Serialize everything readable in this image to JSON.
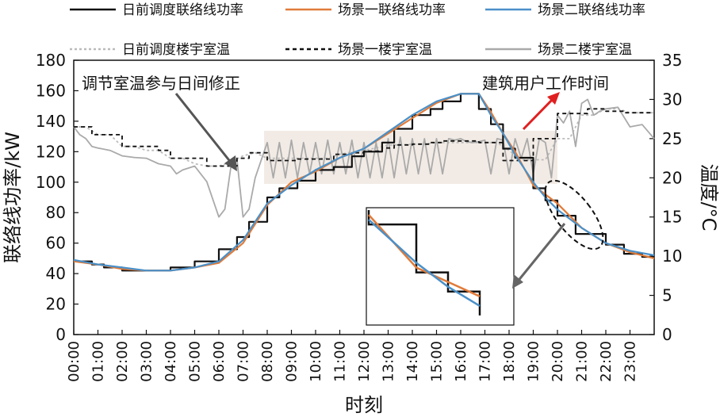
{
  "chart_data": {
    "type": "line",
    "xlabel": "时刻",
    "ylabel_left": "联络线功率/kW",
    "ylabel_right": "温度/°C",
    "ylim_left": [
      0,
      180
    ],
    "ylim_right": [
      0,
      35
    ],
    "yticks_left": [
      "0",
      "20",
      "40",
      "60",
      "80",
      "100",
      "120",
      "140",
      "160",
      "180"
    ],
    "yticks_right": [
      "0",
      "5",
      "10",
      "15",
      "20",
      "25",
      "30",
      "35"
    ],
    "xticks": [
      "00:00",
      "01:00",
      "02:00",
      "03:00",
      "04:00",
      "05:00",
      "06:00",
      "07:00",
      "08:00",
      "09:00",
      "10:00",
      "11:00",
      "12:00",
      "13:00",
      "14:00",
      "15:00",
      "16:00",
      "17:00",
      "18:00",
      "19:00",
      "20:00",
      "21:00",
      "22:00",
      "23:00"
    ],
    "legend": [
      "日前调度联络线功率",
      "场景一联络线功率",
      "场景二联络线功率",
      "日前调度楼宇室温",
      "场景一楼宇室温",
      "场景二楼宇室温"
    ],
    "annotations": {
      "left": "调节室温参与日间修正",
      "right": "建筑用户工作时间"
    },
    "series": [
      {
        "name": "日前调度联络线功率",
        "axis": "left",
        "color": "#111111",
        "x": [
          0,
          0.75,
          0.75,
          1.25,
          1.25,
          2.0,
          2.0,
          3.5,
          3.5,
          4.0,
          4.0,
          5.0,
          5.0,
          6.0,
          6.0,
          6.75,
          6.75,
          7.25,
          7.25,
          8.0,
          8.0,
          8.5,
          8.5,
          9.25,
          9.25,
          10.0,
          10.0,
          10.75,
          10.75,
          11.5,
          11.5,
          12.0,
          12.0,
          12.75,
          12.75,
          13.25,
          13.25,
          14.0,
          14.0,
          14.75,
          14.75,
          15.25,
          15.25,
          16.0,
          16.0,
          16.75,
          16.75,
          17.25,
          17.25,
          17.75,
          17.75,
          18.25,
          18.25,
          19.0,
          19.0,
          19.5,
          19.5,
          20.0,
          20.0,
          20.75,
          20.75,
          21.25,
          21.25,
          22.0,
          22.0,
          22.75,
          22.75,
          23.5,
          23.5,
          24.0
        ],
        "y": [
          48,
          48,
          46,
          46,
          44,
          44,
          42,
          42,
          42,
          42,
          44,
          44,
          48,
          48,
          56,
          56,
          64,
          64,
          74,
          74,
          90,
          90,
          96,
          96,
          101,
          101,
          108,
          108,
          110,
          110,
          117,
          117,
          120,
          120,
          126,
          126,
          135,
          135,
          144,
          144,
          148,
          148,
          153,
          153,
          158,
          158,
          148,
          148,
          138,
          138,
          122,
          122,
          116,
          116,
          96,
          96,
          88,
          88,
          78,
          78,
          66,
          66,
          66,
          66,
          59,
          59,
          53,
          53,
          51,
          51
        ]
      },
      {
        "name": "场景一联络线功率",
        "axis": "left",
        "color": "#e07b39",
        "x": [
          0,
          1,
          2,
          3,
          4,
          5,
          6,
          7,
          8,
          9,
          10,
          11,
          12,
          13,
          14,
          15,
          16,
          16.75,
          17.25,
          17.75,
          18.25,
          19,
          19.5,
          20,
          21,
          22,
          23,
          24
        ],
        "y": [
          48,
          46,
          43,
          42,
          42,
          44,
          47,
          60,
          85,
          100,
          107,
          116,
          122,
          132,
          142,
          152,
          158,
          158,
          146,
          132,
          120,
          98,
          92,
          86,
          70,
          60,
          54,
          50
        ]
      },
      {
        "name": "场景二联络线功率",
        "axis": "left",
        "color": "#4a90c8",
        "x": [
          0,
          1,
          2,
          3,
          4,
          5,
          6,
          7,
          8,
          9,
          10,
          11,
          12,
          13,
          14,
          15,
          16,
          16.75,
          17.25,
          17.75,
          18.25,
          19,
          19.5,
          20,
          21,
          22,
          23,
          24
        ],
        "y": [
          49,
          46,
          44,
          42,
          42,
          44,
          48,
          62,
          86,
          98,
          108,
          116,
          122,
          133,
          144,
          153,
          158,
          158,
          144,
          132,
          118,
          100,
          90,
          82,
          70,
          60,
          55,
          52
        ]
      },
      {
        "name": "日前调度楼宇室温",
        "axis": "right",
        "color": "#bbbbbb",
        "dash": "3,3",
        "x": [
          0,
          0.5,
          1,
          1.5,
          2,
          2.5,
          3,
          3.5,
          4,
          4.5,
          5,
          5.5,
          6,
          6.5,
          7,
          7.5,
          8,
          8.5,
          9,
          9.5,
          10,
          10.5,
          11,
          11.5,
          12,
          12.5,
          13,
          13.5,
          14,
          14.5,
          15,
          15.5,
          16,
          16.5,
          17,
          17.5,
          18,
          18.5,
          19,
          19.5,
          20,
          20.5,
          21,
          21.5,
          22,
          22.5,
          23,
          23.5,
          24
        ],
        "y": [
          26.5,
          26.5,
          25.5,
          25.5,
          24,
          24,
          23.5,
          23.5,
          22.5,
          22.5,
          21.8,
          21.5,
          21.5,
          22,
          22.8,
          23.2,
          22.5,
          22.5,
          22.5,
          22.5,
          22.5,
          22.5,
          23,
          23.3,
          23.5,
          23.8,
          24.2,
          24.2,
          24.3,
          24.3,
          24.5,
          24.5,
          24.5,
          24.5,
          24.5,
          24.5,
          23.5,
          22.3,
          22.3,
          22.3,
          25,
          25,
          28,
          28,
          28.8,
          28.8,
          28.3,
          28.3,
          28.3
        ]
      },
      {
        "name": "场景一楼宇室温",
        "axis": "right",
        "color": "#111111",
        "dash": "5,4",
        "x": [
          0,
          0.75,
          0.75,
          1.5,
          1.5,
          2.0,
          2.0,
          2.75,
          2.75,
          3.5,
          3.5,
          4.0,
          4.0,
          4.75,
          4.75,
          5.5,
          5.5,
          6.0,
          6.0,
          6.75,
          6.75,
          7.25,
          7.25,
          8.0,
          8.0,
          8.5,
          8.5,
          9.25,
          9.25,
          10.0,
          10.0,
          10.75,
          10.75,
          11.5,
          11.5,
          12.0,
          12.0,
          12.75,
          12.75,
          13.25,
          13.25,
          14.0,
          14.0,
          14.75,
          14.75,
          15.25,
          15.25,
          16.0,
          16.0,
          16.75,
          16.75,
          17.25,
          17.25,
          17.75,
          17.75,
          18.25,
          18.25,
          19.0,
          19.0,
          19.5,
          19.5,
          20.0,
          20.0,
          20.75,
          20.75,
          21.25,
          21.25,
          22.0,
          22.0,
          22.75,
          22.75,
          23.5,
          23.5,
          24.0
        ],
        "y": [
          26.5,
          26.5,
          25.5,
          25.5,
          25.5,
          25.5,
          24,
          24,
          24,
          24,
          23.5,
          23.5,
          22.5,
          22.5,
          22.5,
          22.5,
          21.5,
          21.5,
          21.5,
          21.5,
          22.5,
          22.5,
          23.2,
          23.2,
          22.2,
          22.2,
          22.2,
          22.2,
          22.4,
          22.4,
          22.4,
          22.4,
          23,
          23,
          23.2,
          23.2,
          23.4,
          23.4,
          23.8,
          23.8,
          24.2,
          24.2,
          24.3,
          24.3,
          24.5,
          24.5,
          24.7,
          24.7,
          24.7,
          24.7,
          24.5,
          24.5,
          24.5,
          24.5,
          22.2,
          22.2,
          22.2,
          22.2,
          25,
          25,
          25,
          25,
          28.2,
          28.2,
          28.2,
          28.2,
          28.8,
          28.8,
          28.5,
          28.5,
          28.3,
          28.3,
          28.3,
          28.3
        ]
      },
      {
        "name": "场景二楼宇室温",
        "axis": "right",
        "color": "#aaaaaa",
        "x": [
          0,
          0.25,
          0.5,
          0.75,
          1,
          1.5,
          2,
          2.5,
          3,
          3.5,
          4,
          4.25,
          4.5,
          5,
          5.5,
          6,
          6.25,
          6.5,
          6.75,
          7,
          7.25,
          7.5,
          8,
          8.25,
          8.5,
          8.75,
          9,
          9.25,
          9.5,
          9.75,
          10,
          10.25,
          10.5,
          10.75,
          11,
          11.25,
          11.5,
          11.75,
          12,
          12.25,
          12.5,
          12.75,
          13,
          13.25,
          13.5,
          13.75,
          14,
          14.25,
          14.5,
          14.75,
          15,
          15.25,
          15.5,
          15.75,
          16,
          16.25,
          16.5,
          16.75,
          17,
          17.25,
          17.5,
          17.75,
          18,
          18.25,
          18.5,
          18.75,
          19,
          19.25,
          19.5,
          19.75,
          20,
          20.25,
          20.5,
          20.75,
          21,
          21.25,
          21.5,
          21.75,
          22,
          22.5,
          23,
          23.5,
          24
        ],
        "y": [
          26.5,
          25.5,
          25,
          24,
          23.8,
          23.5,
          22.8,
          22.6,
          22.5,
          21.8,
          21.5,
          20.5,
          21,
          21.5,
          19.5,
          15,
          16,
          21.5,
          22.3,
          15,
          16,
          20,
          24.5,
          20,
          24.5,
          20,
          24.8,
          20,
          24.5,
          20.5,
          24.5,
          20.5,
          24.8,
          20.5,
          24.5,
          20.5,
          24.8,
          20,
          24.5,
          20,
          24.5,
          20,
          25,
          20,
          25.2,
          20.5,
          25,
          20.5,
          25,
          20.5,
          25,
          20.5,
          25,
          24.8,
          25,
          24.6,
          24.5,
          24.6,
          24.8,
          20.5,
          25,
          24.8,
          20.5,
          25,
          22.5,
          25,
          20.5,
          25,
          24.5,
          20,
          28,
          27,
          28.5,
          24,
          29.5,
          30,
          28,
          28.5,
          28.8,
          29,
          26.5,
          26.8,
          25
        ]
      }
    ]
  }
}
